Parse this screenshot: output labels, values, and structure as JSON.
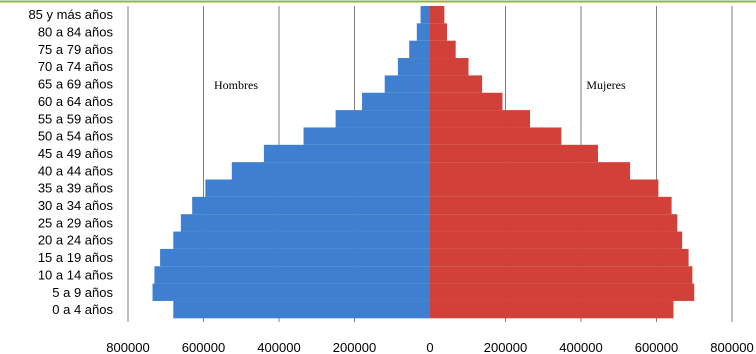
{
  "chart_data": {
    "type": "bar",
    "orientation": "horizontal",
    "categories": [
      "0 a 4 años",
      "5 a 9 años",
      "10 a 14 años",
      "15 a 19 años",
      "20 a 24 años",
      "25 a 29 años",
      "30 a 34 años",
      "35 a 39 años",
      "40 a 44 años",
      "45 a 49 años",
      "50 a 54 años",
      "55 a 59 años",
      "60 a 64 años",
      "65 a 69 años",
      "70 a 74 años",
      "75 a 79 años",
      "80 a 84 años",
      "85 y más años"
    ],
    "series": [
      {
        "name": "Hombres",
        "color": "#3f7fcf",
        "values": [
          680000,
          735000,
          730000,
          715000,
          680000,
          660000,
          630000,
          595000,
          525000,
          440000,
          335000,
          250000,
          180000,
          120000,
          85000,
          55000,
          35000,
          25000
        ]
      },
      {
        "name": "Mujeres",
        "color": "#d2403a",
        "values": [
          645000,
          700000,
          695000,
          685000,
          668000,
          655000,
          640000,
          605000,
          530000,
          445000,
          348000,
          265000,
          192000,
          138000,
          102000,
          68000,
          45000,
          38000
        ]
      }
    ],
    "xlim": [
      -800000,
      800000
    ],
    "xticks": [
      "800000",
      "600000",
      "400000",
      "200000",
      "0",
      "200000",
      "400000",
      "600000",
      "800000"
    ],
    "grid": true,
    "gridColor": "#808080",
    "topLineColor": "#8db543"
  }
}
